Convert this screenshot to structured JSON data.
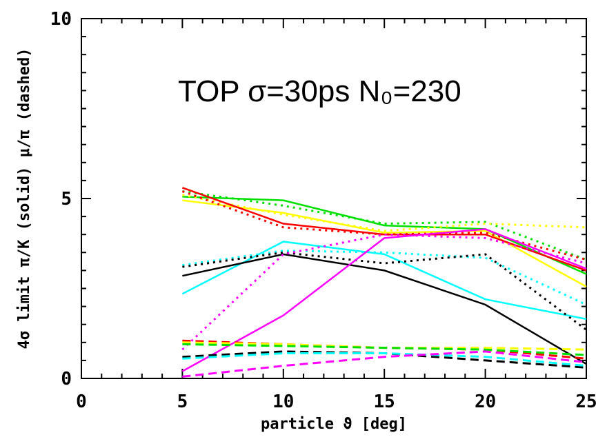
{
  "chart_data": {
    "type": "line",
    "title": "",
    "annotation": "TOP  σ=30ps  N₀=230",
    "xlabel": "particle ϑ [deg]",
    "ylabel": "4σ limit π/K (solid) μ/π (dashed)",
    "xlim": [
      0,
      25
    ],
    "ylim": [
      0,
      10
    ],
    "x_ticks": [
      0,
      5,
      10,
      15,
      20,
      25
    ],
    "y_ticks": [
      0,
      5,
      10
    ],
    "grid": false,
    "legend": "none",
    "series": [
      {
        "color": "#00e000",
        "style": "solid",
        "x": [
          5,
          10,
          15,
          20,
          25
        ],
        "y": [
          5.05,
          4.95,
          4.25,
          4.15,
          2.9
        ]
      },
      {
        "color": "#00e000",
        "style": "dotted",
        "x": [
          5,
          10,
          15,
          20,
          25
        ],
        "y": [
          5.2,
          4.8,
          4.3,
          4.35,
          3.3
        ]
      },
      {
        "color": "#ffff00",
        "style": "solid",
        "x": [
          5,
          10,
          15,
          20,
          25
        ],
        "y": [
          4.95,
          4.6,
          4.05,
          4.1,
          2.55
        ]
      },
      {
        "color": "#ffff00",
        "style": "dotted",
        "x": [
          5,
          10,
          15,
          20,
          25
        ],
        "y": [
          5.1,
          4.55,
          4.1,
          4.3,
          4.2
        ]
      },
      {
        "color": "#ff0000",
        "style": "solid",
        "x": [
          5,
          10,
          15,
          20,
          25
        ],
        "y": [
          5.3,
          4.3,
          4.0,
          4.0,
          3.0
        ]
      },
      {
        "color": "#ff0000",
        "style": "dotted",
        "x": [
          5,
          10,
          15,
          20,
          25
        ],
        "y": [
          5.2,
          4.2,
          4.0,
          4.05,
          3.3
        ]
      },
      {
        "color": "#00ffff",
        "style": "solid",
        "x": [
          5,
          10,
          15,
          20,
          25
        ],
        "y": [
          2.35,
          3.8,
          3.45,
          2.2,
          1.65
        ]
      },
      {
        "color": "#00ffff",
        "style": "dotted",
        "x": [
          5,
          10,
          15,
          20,
          25
        ],
        "y": [
          3.15,
          3.55,
          3.5,
          3.35,
          2.05
        ]
      },
      {
        "color": "#000000",
        "style": "solid",
        "x": [
          5,
          10,
          15,
          20,
          25
        ],
        "y": [
          2.85,
          3.45,
          3.0,
          2.05,
          0.4
        ]
      },
      {
        "color": "#000000",
        "style": "dotted",
        "x": [
          5,
          10,
          15,
          20,
          25
        ],
        "y": [
          3.1,
          3.5,
          3.2,
          3.45,
          1.35
        ]
      },
      {
        "color": "#ff00ff",
        "style": "solid",
        "x": [
          5,
          10,
          15,
          20,
          25
        ],
        "y": [
          0.2,
          1.75,
          3.9,
          4.15,
          3.05
        ]
      },
      {
        "color": "#ff00ff",
        "style": "dotted",
        "x": [
          5,
          10,
          15,
          20,
          25
        ],
        "y": [
          0.8,
          3.45,
          4.0,
          3.9,
          3.2
        ]
      },
      {
        "color": "#ff0000",
        "style": "dashed",
        "x": [
          5,
          10,
          15,
          20,
          25
        ],
        "y": [
          1.05,
          0.95,
          0.85,
          0.8,
          0.55
        ]
      },
      {
        "color": "#ffff00",
        "style": "dashed",
        "x": [
          5,
          10,
          15,
          20,
          25
        ],
        "y": [
          1.0,
          0.95,
          0.85,
          0.85,
          0.8
        ]
      },
      {
        "color": "#00e000",
        "style": "dashed",
        "x": [
          5,
          10,
          15,
          20,
          25
        ],
        "y": [
          0.95,
          0.9,
          0.85,
          0.8,
          0.65
        ]
      },
      {
        "color": "#000000",
        "style": "dashed",
        "x": [
          5,
          10,
          15,
          20,
          25
        ],
        "y": [
          0.6,
          0.75,
          0.7,
          0.5,
          0.3
        ]
      },
      {
        "color": "#00ffff",
        "style": "dashed",
        "x": [
          5,
          10,
          15,
          20,
          25
        ],
        "y": [
          0.55,
          0.7,
          0.7,
          0.6,
          0.35
        ]
      },
      {
        "color": "#ff00ff",
        "style": "dashed",
        "x": [
          5,
          10,
          15,
          20,
          25
        ],
        "y": [
          0.05,
          0.35,
          0.6,
          0.75,
          0.45
        ]
      }
    ]
  }
}
